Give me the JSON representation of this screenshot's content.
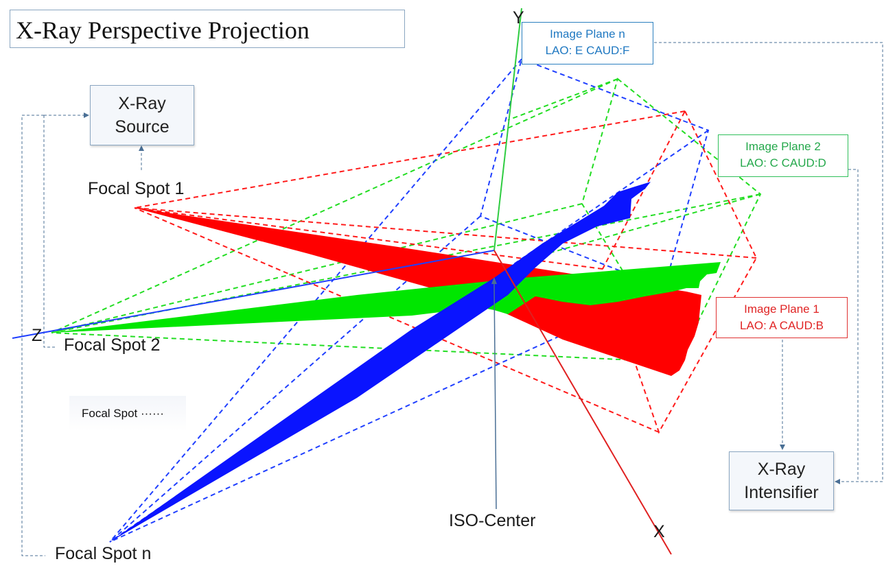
{
  "title": "X-Ray Perspective Projection",
  "xray_source": {
    "line1": "X-Ray",
    "line2": "Source"
  },
  "xray_intensifier": {
    "line1": "X-Ray",
    "line2": "Intensifier"
  },
  "image_planes": [
    {
      "id": "n",
      "name": "Image Plane n",
      "angles": "LAO: E CAUD:F",
      "color": "#1f3fff"
    },
    {
      "id": "2",
      "name": "Image Plane 2",
      "angles": "LAO: C CAUD:D",
      "color": "#22dd22"
    },
    {
      "id": "1",
      "name": "Image Plane 1",
      "angles": "LAO: A CAUD:B",
      "color": "#ff1010"
    }
  ],
  "focal_spots": {
    "spot1": "Focal Spot 1",
    "spot2": "Focal Spot 2",
    "spotn": "Focal Spot n",
    "more": "Focal Spot ······"
  },
  "iso_center": "ISO-Center",
  "axes": {
    "x": "X",
    "y": "Y",
    "z": "Z"
  },
  "colors": {
    "red": "#ff0000",
    "green": "#00e600",
    "blue": "#0a14ff",
    "connector": "#4a6f95"
  }
}
